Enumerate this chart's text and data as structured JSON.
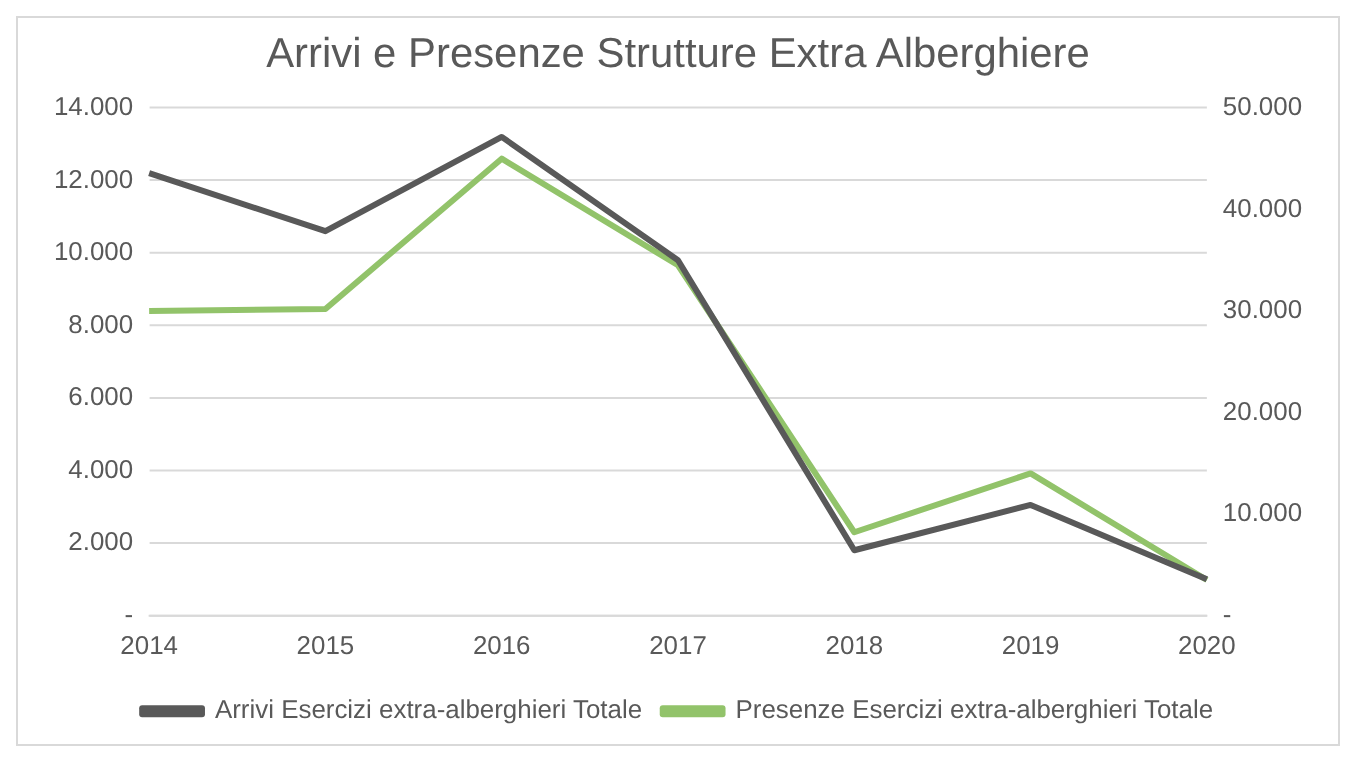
{
  "chart_data": {
    "type": "line",
    "title": "Arrivi e Presenze Strutture Extra Alberghiere",
    "categories": [
      "2014",
      "2015",
      "2016",
      "2017",
      "2018",
      "2019",
      "2020"
    ],
    "series": [
      {
        "name": "Arrivi Esercizi extra-alberghieri Totale",
        "color": "#595959",
        "values": [
          12200,
          10600,
          13200,
          9800,
          1800,
          3050,
          1000
        ]
      },
      {
        "name": "Presenze Esercizi extra-alberghieri Totale",
        "color": "#92c36a",
        "axis": "y2",
        "values": [
          30000,
          30200,
          45000,
          34500,
          8200,
          14000,
          3500
        ]
      }
    ],
    "ylim": [
      0,
      14000
    ],
    "yticks": [
      {
        "value": 0,
        "label": "-"
      },
      {
        "value": 2000,
        "label": "2.000"
      },
      {
        "value": 4000,
        "label": "4.000"
      },
      {
        "value": 6000,
        "label": "6.000"
      },
      {
        "value": 8000,
        "label": "8.000"
      },
      {
        "value": 10000,
        "label": "10.000"
      },
      {
        "value": 12000,
        "label": "12.000"
      },
      {
        "value": 14000,
        "label": "14.000"
      }
    ],
    "y2lim": [
      0,
      50000
    ],
    "y2ticks": [
      {
        "value": 0,
        "label": "-"
      },
      {
        "value": 10000,
        "label": "10.000"
      },
      {
        "value": 20000,
        "label": "20.000"
      },
      {
        "value": 30000,
        "label": "30.000"
      },
      {
        "value": 40000,
        "label": "40.000"
      },
      {
        "value": 50000,
        "label": "50.000"
      }
    ],
    "grid": "y",
    "legend": "bottom",
    "marker": "none",
    "line_style": "solid"
  }
}
